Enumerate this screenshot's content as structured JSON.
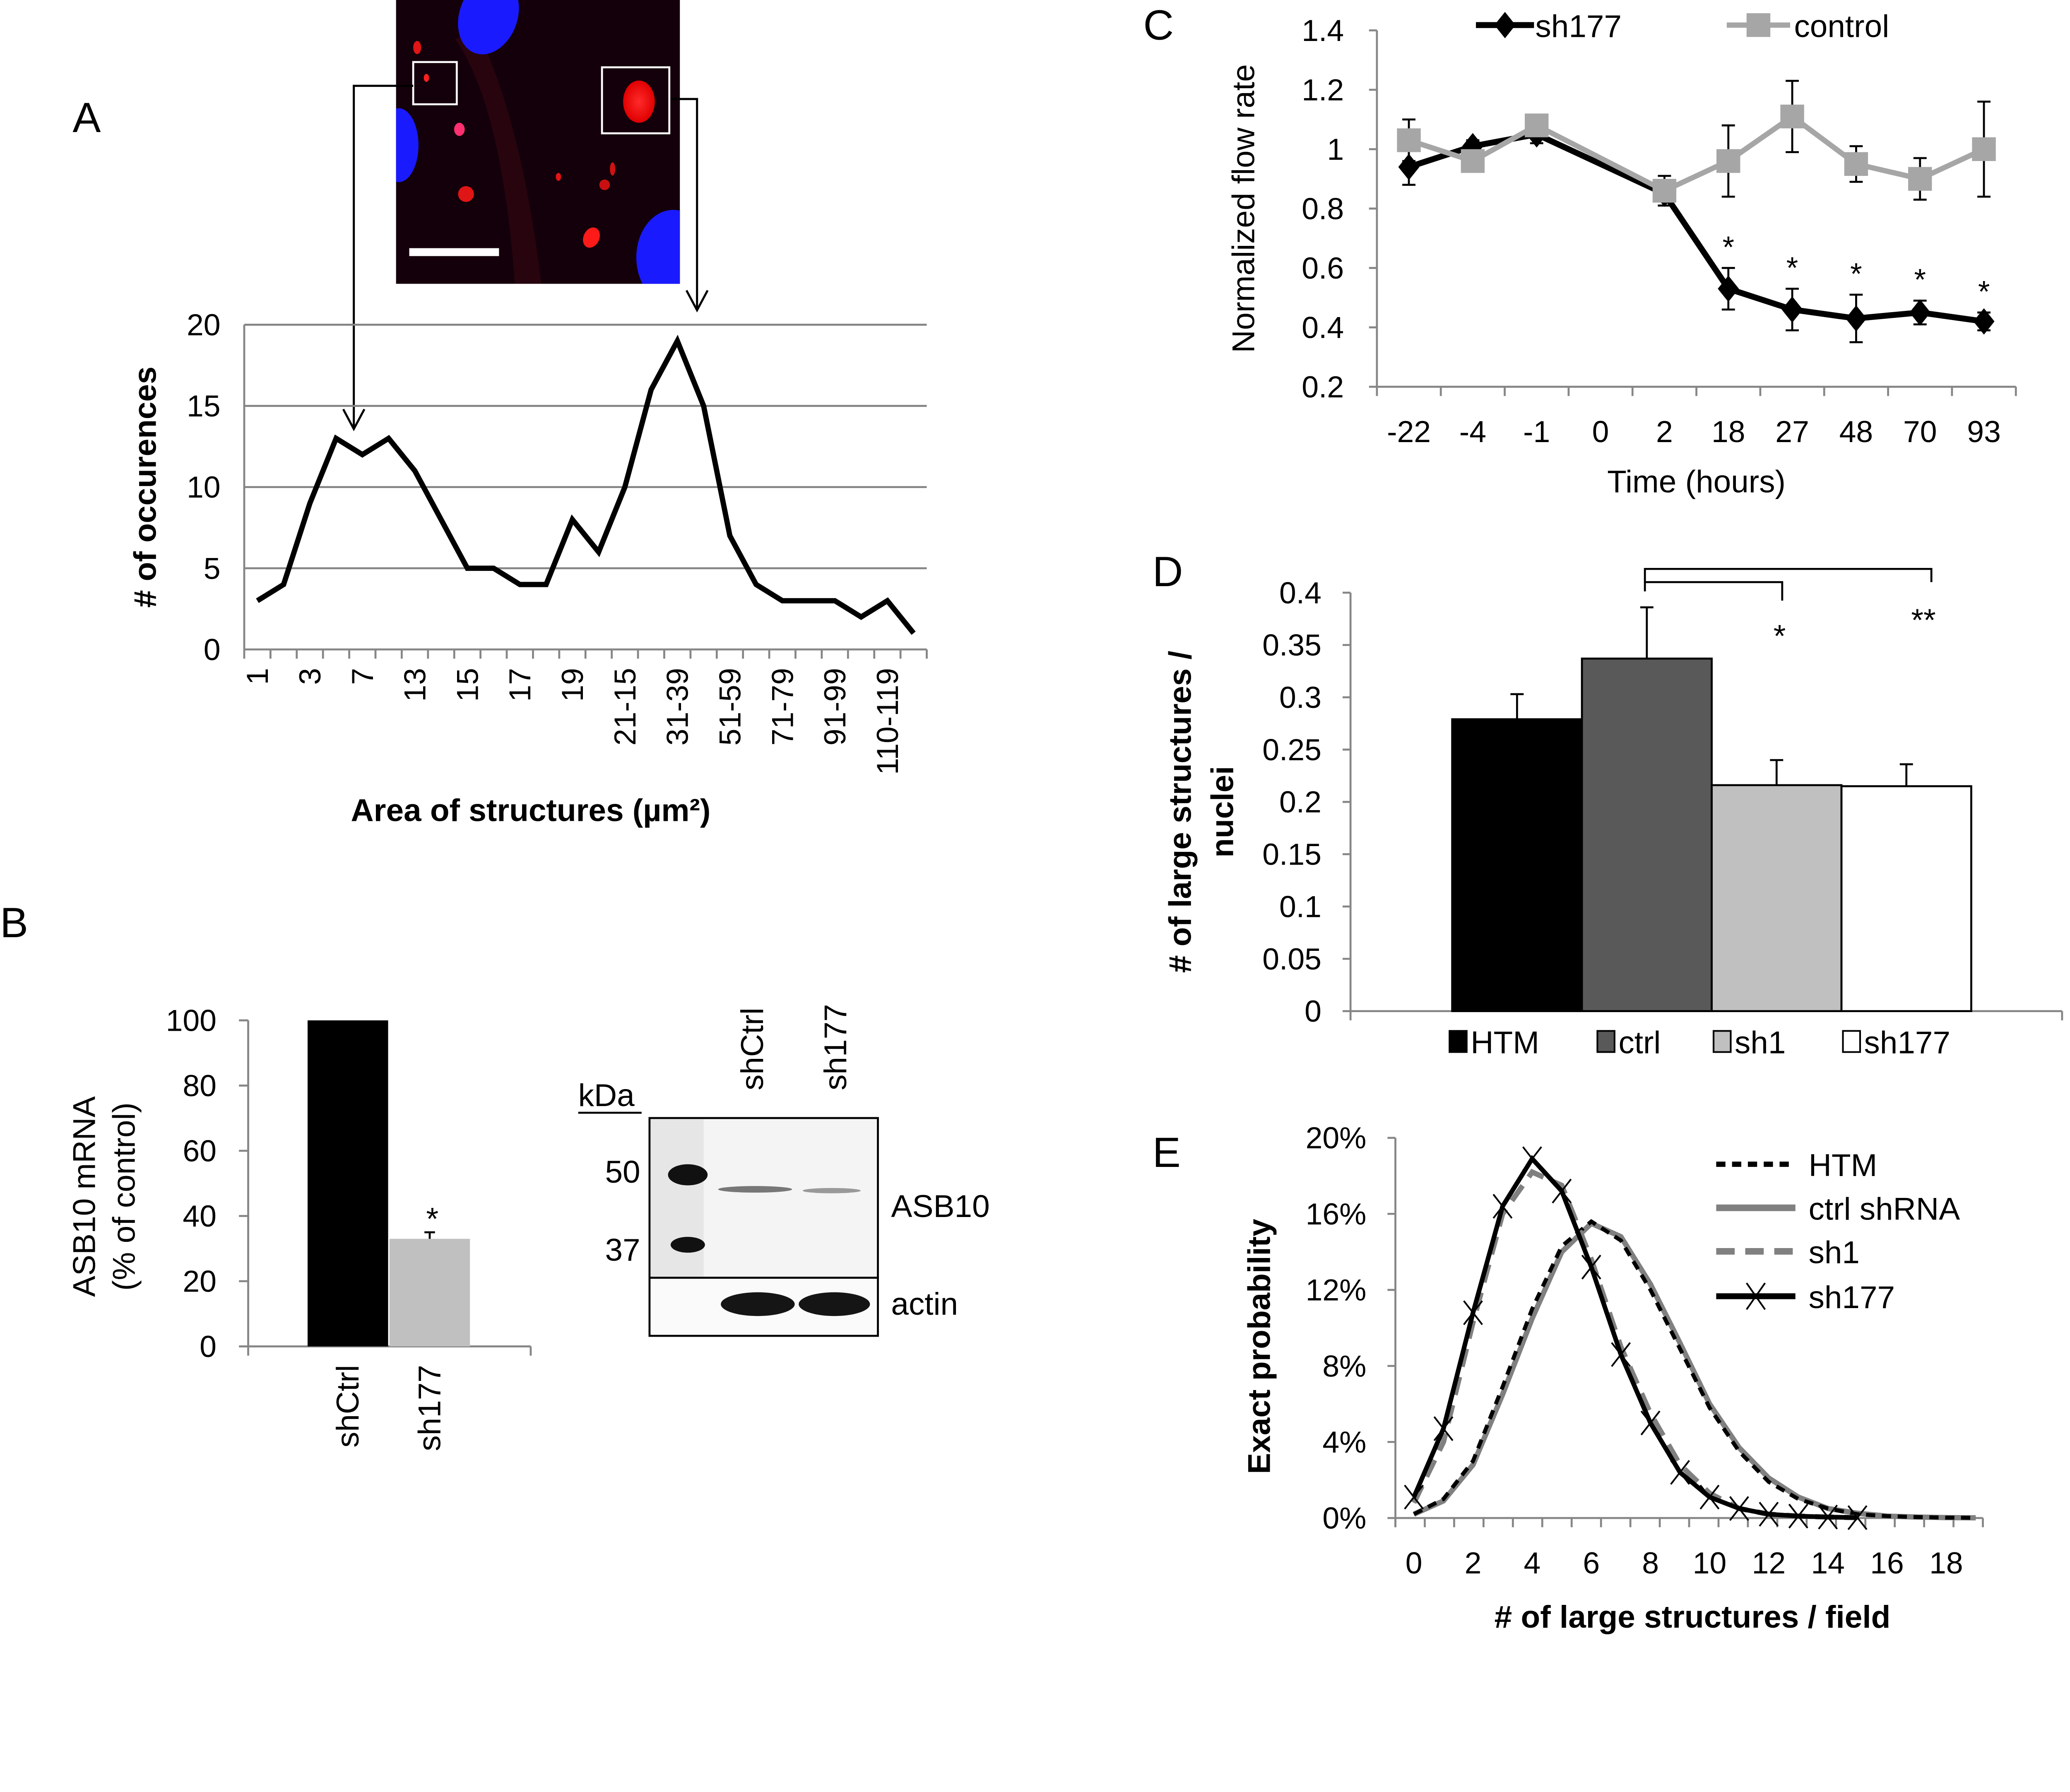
{
  "panel_letters": {
    "a": "A",
    "b": "B",
    "c": "C",
    "d": "D",
    "e": "E"
  },
  "colors": {
    "black": "#000000",
    "dark_gray": "#595959",
    "light_gray": "#c0c0c0",
    "control_gray": "#a6a6a6",
    "axis": "#868686",
    "nuclei_blue": "#1a1aff",
    "structure_red": "#ff1a1a"
  },
  "micrograph": {
    "description_icons": [
      "nucleus-blue",
      "red-structures",
      "scale-bar",
      "inset-boxes"
    ]
  },
  "western_blot": {
    "kda_label": "kDa",
    "markers": [
      "50",
      "37"
    ],
    "lanes": [
      "shCtrl",
      "sh177"
    ],
    "bands": [
      "ASB10",
      "actin"
    ]
  },
  "chart_data": [
    {
      "id": "A",
      "type": "line",
      "xlabel": "Area of structures (µm²)",
      "ylabel": "# of occurences",
      "ylim": [
        0,
        20
      ],
      "yticks": [
        "0",
        "5",
        "10",
        "15",
        "20"
      ],
      "grid": true,
      "categories": [
        "1",
        "",
        "3",
        "",
        "7",
        "",
        "13",
        "",
        "15",
        "",
        "17",
        "",
        "19",
        "",
        "21-15",
        "",
        "31-39",
        "",
        "51-59",
        "",
        "71-79",
        "",
        "91-99",
        "",
        "110-119",
        ""
      ],
      "values": [
        3,
        4,
        9,
        13,
        12,
        13,
        11,
        8,
        5,
        5,
        4,
        4,
        8,
        6,
        10,
        16,
        19,
        15,
        7,
        4,
        3,
        3,
        3,
        2,
        3,
        1
      ]
    },
    {
      "id": "B",
      "type": "bar",
      "ylabel_lines": [
        "ASB10  mRNA",
        "(% of control)"
      ],
      "ylim": [
        0,
        100
      ],
      "yticks": [
        "0",
        "20",
        "40",
        "60",
        "80",
        "100"
      ],
      "categories": [
        "shCtrl",
        "sh177"
      ],
      "values": [
        100,
        33
      ],
      "errors": [
        0,
        2
      ],
      "colors": [
        "#000000",
        "#c0c0c0"
      ],
      "annotations": [
        "",
        "*"
      ]
    },
    {
      "id": "C",
      "type": "line",
      "xlabel": "Time (hours)",
      "ylabel": "Normalized flow rate",
      "ylim": [
        0.2,
        1.4
      ],
      "yticks": [
        "0.2",
        "0.4",
        "0.6",
        "0.8",
        "1",
        "1.2",
        "1.4"
      ],
      "categories": [
        "-22",
        "-4",
        "-1",
        "0",
        "2",
        "18",
        "27",
        "48",
        "70",
        "93"
      ],
      "legend_position": "top",
      "series": [
        {
          "name": "sh177",
          "color": "#000000",
          "marker": "diamond",
          "values": [
            0.94,
            1.01,
            1.05,
            null,
            0.85,
            0.53,
            0.46,
            0.43,
            0.45,
            0.42
          ],
          "errors": [
            0.06,
            0.02,
            0.03,
            null,
            0.04,
            0.07,
            0.07,
            0.08,
            0.04,
            0.03
          ]
        },
        {
          "name": "control",
          "color": "#a6a6a6",
          "marker": "square",
          "values": [
            1.03,
            0.96,
            1.08,
            null,
            0.86,
            0.96,
            1.11,
            0.95,
            0.9,
            1.0
          ],
          "errors": [
            0.07,
            0.02,
            0.03,
            null,
            0.05,
            0.12,
            0.12,
            0.06,
            0.07,
            0.16
          ]
        }
      ],
      "annotations": [
        "",
        "",
        "",
        "",
        "",
        "*",
        "*",
        "*",
        "*",
        "*"
      ]
    },
    {
      "id": "D",
      "type": "bar",
      "ylabel_lines": [
        "# of large structures /",
        "nuclei"
      ],
      "ylim": [
        0,
        0.4
      ],
      "yticks": [
        "0",
        "0.05",
        "0.1",
        "0.15",
        "0.2",
        "0.25",
        "0.3",
        "0.35",
        "0.4"
      ],
      "categories": [
        "HTM",
        "ctrl",
        "sh1",
        "sh177"
      ],
      "values": [
        0.279,
        0.337,
        0.216,
        0.215
      ],
      "errors": [
        0.024,
        0.049,
        0.024,
        0.021
      ],
      "colors": [
        "#000000",
        "#595959",
        "#c0c0c0",
        "#ffffff"
      ],
      "legend_position": "bottom",
      "significance": [
        {
          "from": "ctrl",
          "to": "sh1",
          "label": "*"
        },
        {
          "from": "ctrl",
          "to": "sh177",
          "label": "**"
        }
      ]
    },
    {
      "id": "E",
      "type": "line",
      "xlabel": "# of large structures / field",
      "ylabel": "Exact probability",
      "xlim": [
        0,
        19
      ],
      "xticks": [
        "0",
        "2",
        "4",
        "6",
        "8",
        "10",
        "12",
        "14",
        "16",
        "18"
      ],
      "ylim": [
        0,
        20
      ],
      "yticks": [
        "0%",
        "4%",
        "8%",
        "12%",
        "16%",
        "20%"
      ],
      "legend_position": "top-right",
      "series": [
        {
          "name": "HTM",
          "color": "#000000",
          "style": "dashed",
          "x": [
            0,
            1,
            2,
            3,
            4,
            5,
            6,
            7,
            8,
            9,
            10,
            11,
            12,
            13,
            14,
            15,
            16,
            17,
            18,
            19
          ],
          "values": [
            0.2,
            1.0,
            3.0,
            6.9,
            11.0,
            14.3,
            15.6,
            14.6,
            12.0,
            8.9,
            5.8,
            3.5,
            1.9,
            1.0,
            0.5,
            0.2,
            0.1,
            0.05,
            0.02,
            0.01
          ]
        },
        {
          "name": "ctrl shRNA",
          "color": "#808080",
          "style": "solid",
          "x": [
            0,
            1,
            2,
            3,
            4,
            5,
            6,
            7,
            8,
            9,
            10,
            11,
            12,
            13,
            14,
            15,
            16,
            17,
            18,
            19
          ],
          "values": [
            0.2,
            0.9,
            2.8,
            6.5,
            10.5,
            14.0,
            15.5,
            14.8,
            12.3,
            9.2,
            6.0,
            3.7,
            2.1,
            1.1,
            0.5,
            0.25,
            0.1,
            0.05,
            0.02,
            0.01
          ]
        },
        {
          "name": "sh1",
          "color": "#808080",
          "style": "long-dash",
          "x": [
            0,
            1,
            2,
            3,
            4,
            5,
            6,
            7,
            8,
            9,
            10,
            11,
            12,
            13,
            14,
            15
          ],
          "values": [
            0.8,
            4.0,
            10.3,
            16.0,
            18.2,
            17.5,
            13.6,
            9.0,
            5.5,
            2.8,
            1.3,
            0.5,
            0.2,
            0.1,
            0.05,
            0.02
          ]
        },
        {
          "name": "sh177",
          "color": "#000000",
          "style": "solid",
          "marker": "x",
          "x": [
            0,
            1,
            2,
            3,
            4,
            5,
            6,
            7,
            8,
            9,
            10,
            11,
            12,
            13,
            14,
            15
          ],
          "values": [
            1.1,
            4.7,
            10.8,
            16.4,
            18.9,
            17.2,
            13.2,
            8.6,
            5.0,
            2.4,
            1.1,
            0.5,
            0.2,
            0.1,
            0.05,
            0.02
          ]
        }
      ]
    }
  ]
}
